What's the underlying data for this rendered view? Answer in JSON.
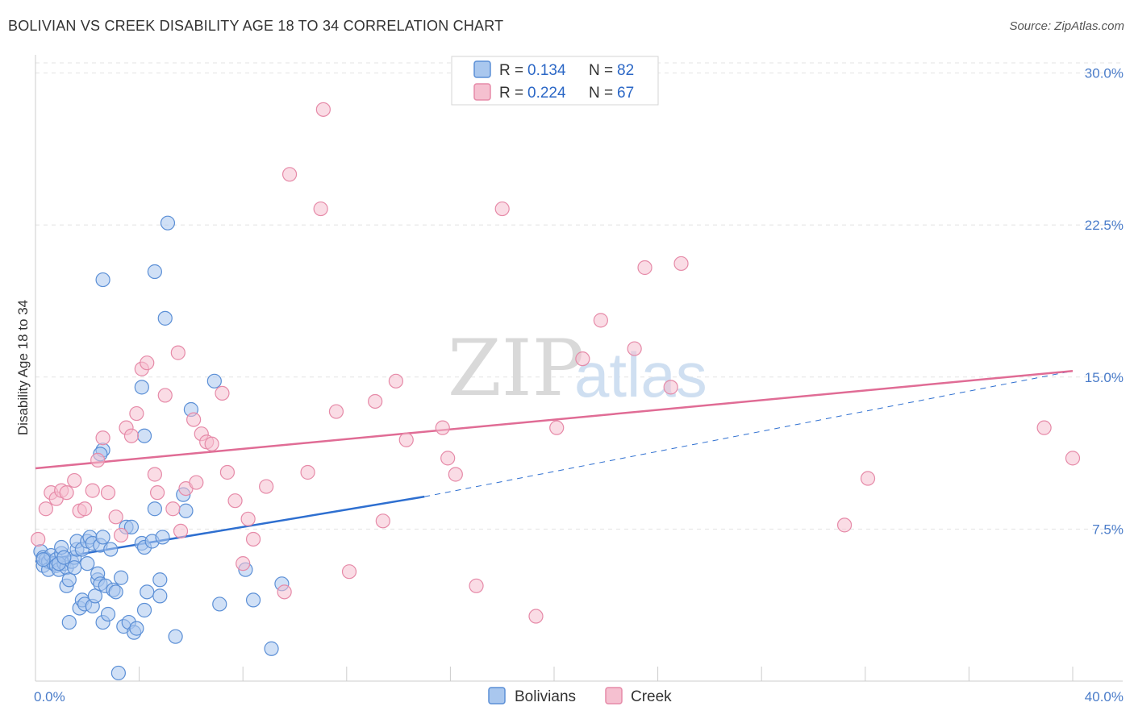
{
  "title": "BOLIVIAN VS CREEK DISABILITY AGE 18 TO 34 CORRELATION CHART",
  "source": "Source: ZipAtlas.com",
  "watermark": {
    "zip": "ZIP",
    "atlas": "atlas"
  },
  "colors": {
    "blue": "#5b8fd6",
    "blue_fill": "#a9c7ee",
    "blue_line": "#2e6fd0",
    "pink": "#e68aa8",
    "pink_fill": "#f5c0d0",
    "pink_line": "#e06c95",
    "grid": "#e3e3e3",
    "tick_text": "#4a7cc9"
  },
  "legend": {
    "r_label": "R =",
    "n_label": "N =",
    "entries": [
      {
        "r": "0.134",
        "n": "82",
        "color": "blue"
      },
      {
        "r": "0.224",
        "n": "67",
        "color": "pink"
      }
    ]
  },
  "bottom_legend": [
    "Bolivians",
    "Creek"
  ],
  "chart_data": {
    "type": "scatter",
    "title": "BOLIVIAN VS CREEK DISABILITY AGE 18 TO 34 CORRELATION CHART",
    "xlabel": "",
    "ylabel": "Disability Age 18 to 34",
    "xlim": [
      0,
      40
    ],
    "ylim": [
      0,
      30.5
    ],
    "x_tick_labels": [
      "0.0%",
      "40.0%"
    ],
    "y_ticks": [
      7.5,
      15.0,
      22.5,
      30.0
    ],
    "y_tick_labels": [
      "7.5%",
      "15.0%",
      "22.5%",
      "30.0%"
    ],
    "series": [
      {
        "name": "Bolivians",
        "r": 0.134,
        "n": 82,
        "trend": {
          "x0": 0,
          "y0": 5.9,
          "x1": 15,
          "y1": 9.1,
          "dashed_to_x": 40,
          "dashed_to_y": 15.3
        },
        "points": [
          [
            0.2,
            6.4
          ],
          [
            0.3,
            6.1
          ],
          [
            0.3,
            5.7
          ],
          [
            0.4,
            6.0
          ],
          [
            0.5,
            5.9
          ],
          [
            0.5,
            5.5
          ],
          [
            0.6,
            6.2
          ],
          [
            0.7,
            5.8
          ],
          [
            0.8,
            6.0
          ],
          [
            0.8,
            5.7
          ],
          [
            0.9,
            5.5
          ],
          [
            1.0,
            6.3
          ],
          [
            1.0,
            6.6
          ],
          [
            1.1,
            5.8
          ],
          [
            1.2,
            5.6
          ],
          [
            1.2,
            4.7
          ],
          [
            1.3,
            5.0
          ],
          [
            1.3,
            2.9
          ],
          [
            1.4,
            5.9
          ],
          [
            1.5,
            6.1
          ],
          [
            1.5,
            5.6
          ],
          [
            1.6,
            6.5
          ],
          [
            1.6,
            6.9
          ],
          [
            1.7,
            3.6
          ],
          [
            1.8,
            4.0
          ],
          [
            1.8,
            6.5
          ],
          [
            1.9,
            3.8
          ],
          [
            2.0,
            6.9
          ],
          [
            2.0,
            5.8
          ],
          [
            2.1,
            7.1
          ],
          [
            2.2,
            6.8
          ],
          [
            2.2,
            3.7
          ],
          [
            2.3,
            4.2
          ],
          [
            2.4,
            5.0
          ],
          [
            2.4,
            5.3
          ],
          [
            2.5,
            4.8
          ],
          [
            2.5,
            6.7
          ],
          [
            2.6,
            2.9
          ],
          [
            2.6,
            7.1
          ],
          [
            2.7,
            4.7
          ],
          [
            2.8,
            3.3
          ],
          [
            2.9,
            6.5
          ],
          [
            3.0,
            4.5
          ],
          [
            3.1,
            4.4
          ],
          [
            3.2,
            0.4
          ],
          [
            3.3,
            5.1
          ],
          [
            3.4,
            2.7
          ],
          [
            3.5,
            7.6
          ],
          [
            3.6,
            2.9
          ],
          [
            3.7,
            7.6
          ],
          [
            3.8,
            2.4
          ],
          [
            3.9,
            2.6
          ],
          [
            4.1,
            6.8
          ],
          [
            4.2,
            3.5
          ],
          [
            4.2,
            6.6
          ],
          [
            4.3,
            4.4
          ],
          [
            4.5,
            6.9
          ],
          [
            4.6,
            8.5
          ],
          [
            4.8,
            4.2
          ],
          [
            4.8,
            5.0
          ],
          [
            4.9,
            7.1
          ],
          [
            5.1,
            22.6
          ],
          [
            5.4,
            2.2
          ],
          [
            5.8,
            8.4
          ],
          [
            5.7,
            9.2
          ],
          [
            6.0,
            13.4
          ],
          [
            6.9,
            14.8
          ],
          [
            7.1,
            3.8
          ],
          [
            8.1,
            5.5
          ],
          [
            8.4,
            4.0
          ],
          [
            9.1,
            1.6
          ],
          [
            9.5,
            4.8
          ],
          [
            2.6,
            19.8
          ],
          [
            4.6,
            20.2
          ],
          [
            5.0,
            17.9
          ],
          [
            4.1,
            14.5
          ],
          [
            4.2,
            12.1
          ],
          [
            2.6,
            11.4
          ],
          [
            2.5,
            11.2
          ],
          [
            0.3,
            6.0
          ],
          [
            0.9,
            5.8
          ],
          [
            1.1,
            6.1
          ]
        ]
      },
      {
        "name": "Creek",
        "r": 0.224,
        "n": 67,
        "trend": {
          "x0": 0,
          "y0": 10.5,
          "x1": 40,
          "y1": 15.3
        },
        "points": [
          [
            0.1,
            7.0
          ],
          [
            0.4,
            8.5
          ],
          [
            0.6,
            9.3
          ],
          [
            0.8,
            9.0
          ],
          [
            1.0,
            9.4
          ],
          [
            1.2,
            9.3
          ],
          [
            1.5,
            9.9
          ],
          [
            1.7,
            8.4
          ],
          [
            1.9,
            8.5
          ],
          [
            2.2,
            9.4
          ],
          [
            2.4,
            10.9
          ],
          [
            2.6,
            12.0
          ],
          [
            2.8,
            9.3
          ],
          [
            3.1,
            8.1
          ],
          [
            3.3,
            7.2
          ],
          [
            3.5,
            12.5
          ],
          [
            3.7,
            12.1
          ],
          [
            3.9,
            13.2
          ],
          [
            4.1,
            15.4
          ],
          [
            4.3,
            15.7
          ],
          [
            4.6,
            10.2
          ],
          [
            4.7,
            9.3
          ],
          [
            5.0,
            14.1
          ],
          [
            5.3,
            8.5
          ],
          [
            5.5,
            16.2
          ],
          [
            5.6,
            7.4
          ],
          [
            5.8,
            9.5
          ],
          [
            6.1,
            12.9
          ],
          [
            6.2,
            9.8
          ],
          [
            6.4,
            12.2
          ],
          [
            6.6,
            11.8
          ],
          [
            6.8,
            11.7
          ],
          [
            7.2,
            14.2
          ],
          [
            7.4,
            10.3
          ],
          [
            7.7,
            8.9
          ],
          [
            8.0,
            5.8
          ],
          [
            8.2,
            8.0
          ],
          [
            8.4,
            7.0
          ],
          [
            8.9,
            9.6
          ],
          [
            9.6,
            4.4
          ],
          [
            9.8,
            25.0
          ],
          [
            10.5,
            10.3
          ],
          [
            11.0,
            23.3
          ],
          [
            11.6,
            13.3
          ],
          [
            12.1,
            5.4
          ],
          [
            13.1,
            13.8
          ],
          [
            13.4,
            7.9
          ],
          [
            13.9,
            14.8
          ],
          [
            14.3,
            11.9
          ],
          [
            11.1,
            28.2
          ],
          [
            15.7,
            12.5
          ],
          [
            15.9,
            11.0
          ],
          [
            16.2,
            10.2
          ],
          [
            17.0,
            4.7
          ],
          [
            18.0,
            23.3
          ],
          [
            19.3,
            3.2
          ],
          [
            20.1,
            12.5
          ],
          [
            21.1,
            15.9
          ],
          [
            21.8,
            17.8
          ],
          [
            23.1,
            16.4
          ],
          [
            23.5,
            20.4
          ],
          [
            24.5,
            14.5
          ],
          [
            24.9,
            20.6
          ],
          [
            31.2,
            7.7
          ],
          [
            32.1,
            10.0
          ],
          [
            38.9,
            12.5
          ],
          [
            40.0,
            11.0
          ]
        ]
      }
    ]
  }
}
